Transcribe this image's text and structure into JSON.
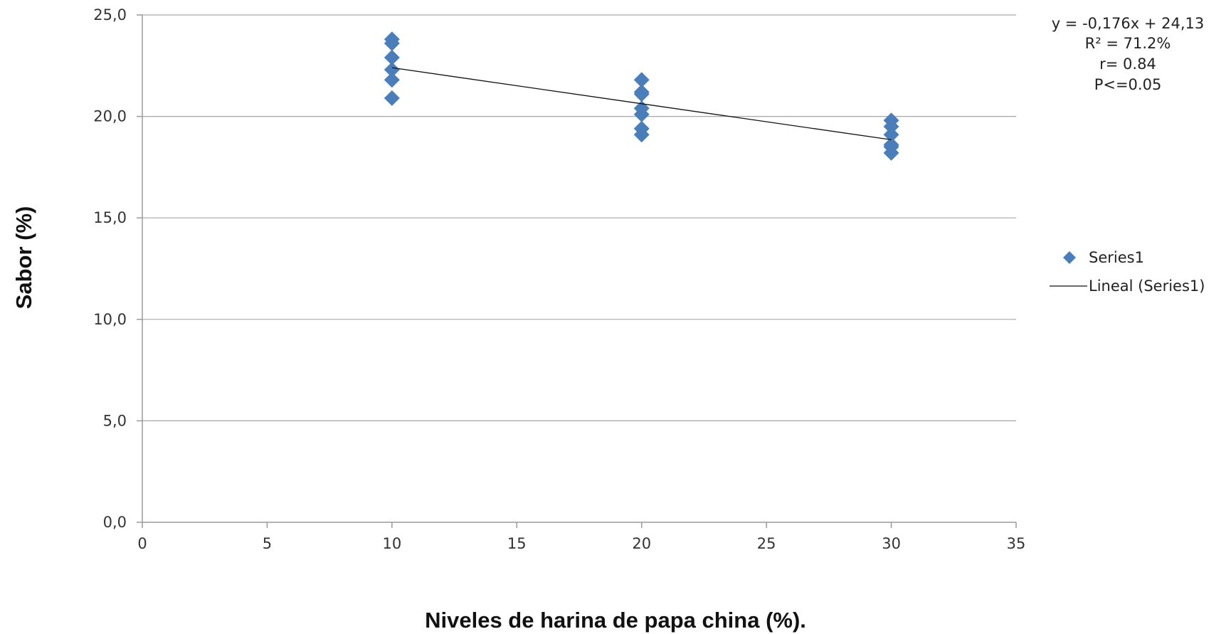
{
  "chart_data": {
    "type": "scatter",
    "xlabel": "Niveles de harina de papa china (%).",
    "ylabel": "Sabor  (%)",
    "xlim": [
      0,
      35
    ],
    "ylim": [
      0,
      25
    ],
    "x_ticks": [
      0,
      5,
      10,
      15,
      20,
      25,
      30,
      35
    ],
    "x_tick_labels": [
      "0",
      "5",
      "10",
      "15",
      "20",
      "25",
      "30",
      "35"
    ],
    "y_ticks": [
      0,
      5,
      10,
      15,
      20,
      25
    ],
    "y_tick_labels": [
      "0,0",
      "5,0",
      "10,0",
      "15,0",
      "20,0",
      "25,0"
    ],
    "grid": "horizontal",
    "legend_position": "right",
    "series": [
      {
        "name": "Series1",
        "marker": "diamond",
        "color": "#4a7ebb",
        "points": [
          {
            "x": 10,
            "y": 23.8
          },
          {
            "x": 10,
            "y": 23.6
          },
          {
            "x": 10,
            "y": 22.9
          },
          {
            "x": 10,
            "y": 22.3
          },
          {
            "x": 10,
            "y": 21.8
          },
          {
            "x": 10,
            "y": 20.9
          },
          {
            "x": 20,
            "y": 21.8
          },
          {
            "x": 20,
            "y": 21.2
          },
          {
            "x": 20,
            "y": 21.1
          },
          {
            "x": 20,
            "y": 20.4
          },
          {
            "x": 20,
            "y": 20.1
          },
          {
            "x": 20,
            "y": 19.4
          },
          {
            "x": 20,
            "y": 19.1
          },
          {
            "x": 30,
            "y": 19.8
          },
          {
            "x": 30,
            "y": 19.5
          },
          {
            "x": 30,
            "y": 19.1
          },
          {
            "x": 30,
            "y": 18.6
          },
          {
            "x": 30,
            "y": 18.5
          },
          {
            "x": 30,
            "y": 18.2
          }
        ]
      }
    ],
    "trendline": {
      "name": "Lineal (Series1)",
      "color": "#111111",
      "from": {
        "x": 10,
        "y": 22.4
      },
      "to": {
        "x": 30,
        "y": 18.85
      }
    },
    "annotation_lines": [
      "y = -0,176x + 24,13",
      "R² = 71.2%",
      "r=  0.84",
      "P<=0.05"
    ]
  }
}
